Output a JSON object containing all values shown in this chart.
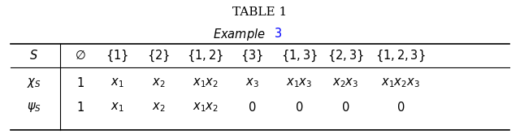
{
  "title": "T\\textsc{able} 1",
  "subtitle": "Example 3",
  "subtitle_num_color": "#0000ff",
  "col_headers": [
    "$S$",
    "$\\emptyset$",
    "$\\{1\\}$",
    "$\\{2\\}$",
    "$\\{1,2\\}$",
    "$\\{3\\}$",
    "$\\{1,3\\}$",
    "$\\{2,3\\}$",
    "$\\{1,2,3\\}$"
  ],
  "row1_label": "$\\chi_S$",
  "row2_label": "$\\psi_S$",
  "row1_data": [
    "$1$",
    "$x_1$",
    "$x_2$",
    "$x_1x_2$",
    "$x_3$",
    "$x_1x_3$",
    "$x_2x_3$",
    "$x_1x_2x_3$"
  ],
  "row2_data": [
    "$1$",
    "$x_1$",
    "$x_2$",
    "$x_1x_2$",
    "$0$",
    "$0$",
    "$0$",
    "$0$"
  ],
  "bg_color": "#ffffff",
  "text_color": "#000000",
  "fontsize": 11
}
